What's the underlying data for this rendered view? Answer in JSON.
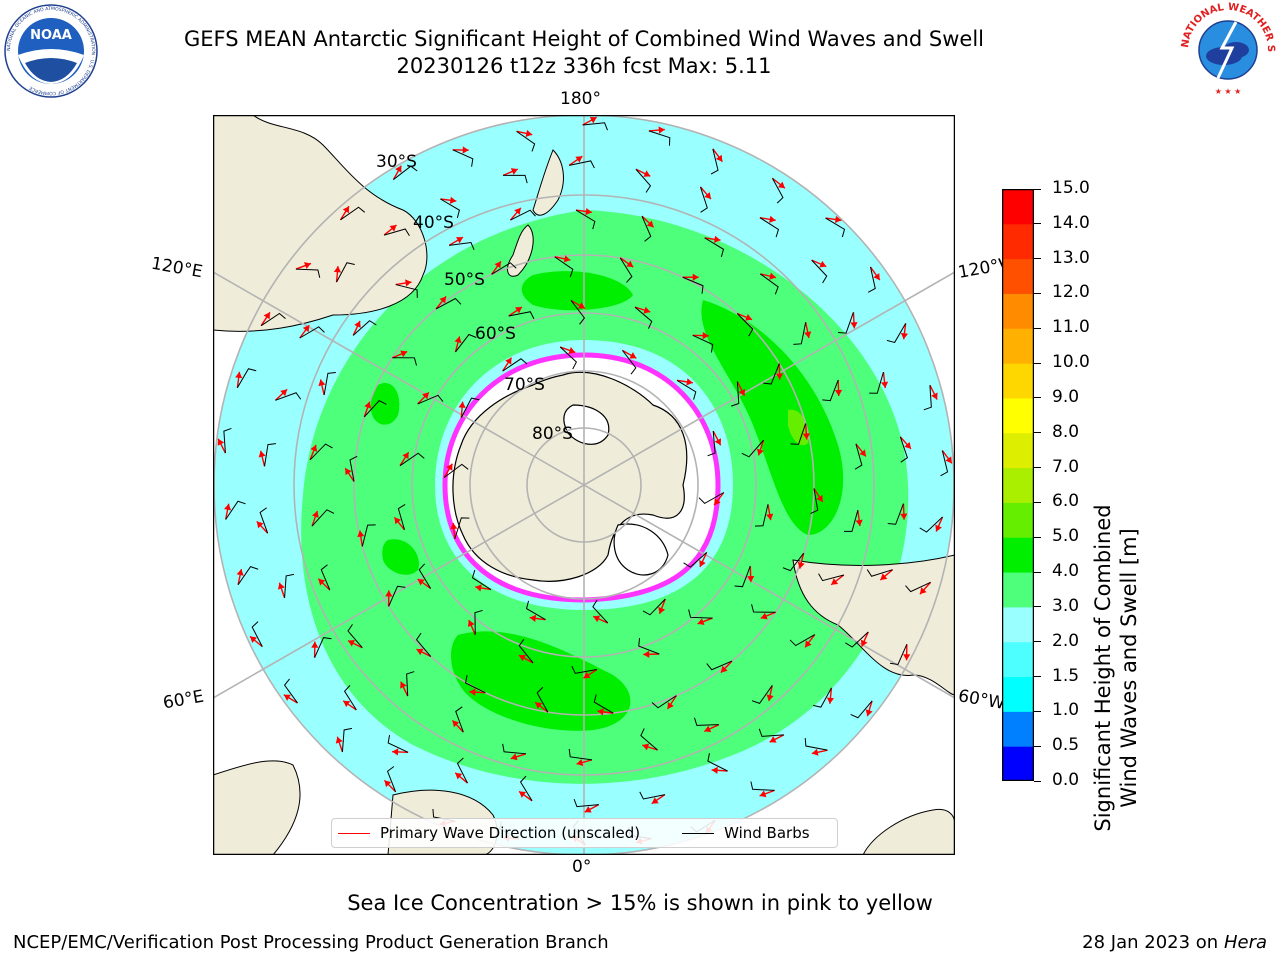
{
  "header": {
    "title_line1": "GEFS MEAN Antarctic Significant Height of Combined Wind Waves and Swell",
    "title_line2": "20230126 t12z 336h fcst   Max: 5.11"
  },
  "logos": {
    "left": "NOAA",
    "left_ring_text": "NATIONAL OCEANIC AND ATMOSPHERIC ADMINISTRATION · U.S. DEPARTMENT OF COMMERCE",
    "right_ring_text": "NATIONAL WEATHER SERVICE"
  },
  "map": {
    "longitude_labels": {
      "top": "180°",
      "bottom": "0°",
      "upper_left": "120°E",
      "upper_right": "120°W",
      "lower_left": "60°E",
      "lower_right": "60°W"
    },
    "latitude_labels": [
      "30°S",
      "40°S",
      "50°S",
      "60°S",
      "70°S",
      "80°S"
    ],
    "colors": {
      "ocean_low": "#99ffff",
      "ocean_mid": "#4dff7a",
      "ocean_high": "#00ee00",
      "land": "#efecd9",
      "ice": "#ffffff",
      "ice_edge": "#ff33ff",
      "grid": "#b3b3b3",
      "wave_arrow": "#ff0000",
      "wind_barb": "#000000"
    }
  },
  "legend": {
    "wave_label": "Primary Wave Direction (unscaled)",
    "wind_label": "Wind Barbs"
  },
  "colorbar": {
    "label_line1": "Significant Height of Combined",
    "label_line2": "Wind Waves and Swell [m]",
    "ticks": [
      "0.0",
      "0.5",
      "1.0",
      "1.5",
      "2.0",
      "3.0",
      "4.0",
      "5.0",
      "6.0",
      "7.0",
      "8.0",
      "9.0",
      "10.0",
      "11.0",
      "12.0",
      "13.0",
      "14.0",
      "15.0"
    ],
    "colors": [
      "#0000ff",
      "#0080ff",
      "#00ffff",
      "#4dffff",
      "#99ffff",
      "#4dff7a",
      "#00ee00",
      "#66ee00",
      "#aaee00",
      "#ddee00",
      "#ffff00",
      "#ffd700",
      "#ffb000",
      "#ff8c00",
      "#ff5000",
      "#ff2a00",
      "#ff0000"
    ]
  },
  "footer": {
    "subtitle": "Sea Ice Concentration > 15% is shown in pink to yellow",
    "credit": "NCEP/EMC/Verification Post Processing Product Generation Branch",
    "date": "28 Jan 2023 on ",
    "system": "Hera"
  }
}
